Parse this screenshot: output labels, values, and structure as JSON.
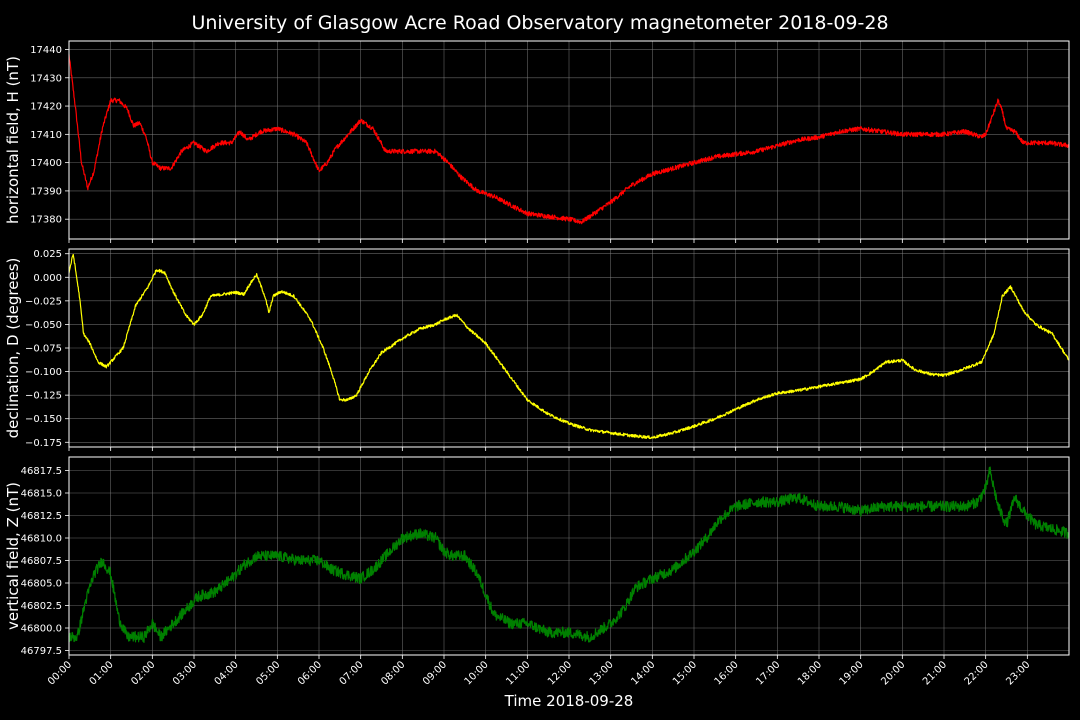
{
  "chart_data": {
    "type": "line",
    "title": "University of Glasgow Acre Road Observatory magnetometer 2018-09-28",
    "xlabel": "Time 2018-09-28",
    "x_unit": "hours",
    "xlim": [
      0,
      24
    ],
    "x_ticks": [
      "00:00",
      "01:00",
      "02:00",
      "03:00",
      "04:00",
      "05:00",
      "06:00",
      "07:00",
      "08:00",
      "09:00",
      "10:00",
      "11:00",
      "12:00",
      "13:00",
      "14:00",
      "15:00",
      "16:00",
      "17:00",
      "18:00",
      "19:00",
      "20:00",
      "21:00",
      "22:00",
      "23:00"
    ],
    "grid": true,
    "background": "#000000",
    "grid_color": "#808080",
    "panels": [
      {
        "ylabel": "horizontal field, H (nT)",
        "color": "#ff0000",
        "ylim": [
          17373,
          17443
        ],
        "y_ticks": [
          "17380",
          "17390",
          "17400",
          "17410",
          "17420",
          "17430",
          "17440"
        ],
        "noise": 0.8,
        "x": [
          0,
          0.15,
          0.3,
          0.45,
          0.6,
          0.8,
          1.0,
          1.2,
          1.4,
          1.55,
          1.7,
          1.85,
          2.0,
          2.2,
          2.45,
          2.7,
          3.0,
          3.3,
          3.6,
          3.9,
          4.1,
          4.3,
          4.6,
          5.0,
          5.4,
          5.7,
          6.0,
          6.2,
          6.4,
          6.7,
          7.0,
          7.3,
          7.6,
          8.0,
          8.4,
          8.8,
          9.1,
          9.4,
          9.8,
          10.2,
          10.6,
          11.0,
          11.5,
          12.0,
          12.3,
          12.6,
          13.0,
          13.5,
          14.0,
          14.5,
          15.0,
          15.5,
          16.0,
          16.5,
          17.0,
          17.5,
          18.0,
          18.5,
          19.0,
          19.5,
          20.0,
          20.5,
          21.0,
          21.5,
          21.9,
          22.0,
          22.2,
          22.3,
          22.4,
          22.5,
          22.7,
          22.9,
          23.1,
          23.5,
          24.0
        ],
        "values": [
          17438,
          17420,
          17400,
          17391,
          17397,
          17412,
          17422,
          17422,
          17419,
          17413,
          17414,
          17409,
          17400,
          17398,
          17398,
          17404,
          17407,
          17404,
          17407,
          17407,
          17411,
          17408,
          17411,
          17412,
          17410,
          17407,
          17397,
          17400,
          17405,
          17410,
          17415,
          17412,
          17404,
          17404,
          17404,
          17404,
          17400,
          17395,
          17390,
          17388,
          17385,
          17382,
          17381,
          17380,
          17379,
          17382,
          17386,
          17392,
          17396,
          17398,
          17400,
          17402,
          17403,
          17404,
          17406,
          17408,
          17409,
          17411,
          17412,
          17411,
          17410,
          17410,
          17410,
          17411,
          17409,
          17410,
          17418,
          17422,
          17418,
          17412,
          17411,
          17407,
          17407,
          17407,
          17406
        ]
      },
      {
        "ylabel": "declination, D (degrees)",
        "color": "#ffff00",
        "ylim": [
          -0.18,
          0.03
        ],
        "y_ticks": [
          "−0.175",
          "−0.150",
          "−0.125",
          "−0.100",
          "−0.075",
          "−0.050",
          "−0.025",
          "0.000",
          "0.025"
        ],
        "noise": 0.0015,
        "x": [
          0,
          0.1,
          0.25,
          0.35,
          0.5,
          0.7,
          0.9,
          1.0,
          1.3,
          1.6,
          1.9,
          2.1,
          2.3,
          2.5,
          2.8,
          3.0,
          3.2,
          3.4,
          3.7,
          4.0,
          4.2,
          4.3,
          4.5,
          4.7,
          4.8,
          4.9,
          5.1,
          5.4,
          5.8,
          6.1,
          6.3,
          6.5,
          6.7,
          6.9,
          7.2,
          7.5,
          8.0,
          8.4,
          8.8,
          9.0,
          9.3,
          9.6,
          10.0,
          10.5,
          11.0,
          11.5,
          12.0,
          12.5,
          13.0,
          13.5,
          14.0,
          14.5,
          15.0,
          15.5,
          16.0,
          16.5,
          17.0,
          17.5,
          18.0,
          18.5,
          19.0,
          19.3,
          19.6,
          20.0,
          20.3,
          20.7,
          21.0,
          21.3,
          21.6,
          21.9,
          22.2,
          22.4,
          22.6,
          22.9,
          23.2,
          23.6,
          24.0
        ],
        "values": [
          0.005,
          0.025,
          -0.02,
          -0.06,
          -0.07,
          -0.09,
          -0.095,
          -0.09,
          -0.075,
          -0.03,
          -0.01,
          0.008,
          0.005,
          -0.015,
          -0.04,
          -0.05,
          -0.04,
          -0.02,
          -0.018,
          -0.016,
          -0.018,
          -0.01,
          0.003,
          -0.02,
          -0.038,
          -0.02,
          -0.015,
          -0.02,
          -0.045,
          -0.075,
          -0.1,
          -0.13,
          -0.13,
          -0.125,
          -0.1,
          -0.08,
          -0.065,
          -0.055,
          -0.05,
          -0.045,
          -0.04,
          -0.055,
          -0.07,
          -0.1,
          -0.13,
          -0.145,
          -0.155,
          -0.162,
          -0.165,
          -0.168,
          -0.17,
          -0.165,
          -0.158,
          -0.15,
          -0.14,
          -0.13,
          -0.123,
          -0.12,
          -0.116,
          -0.112,
          -0.108,
          -0.1,
          -0.09,
          -0.088,
          -0.098,
          -0.103,
          -0.104,
          -0.1,
          -0.095,
          -0.09,
          -0.06,
          -0.02,
          -0.01,
          -0.035,
          -0.05,
          -0.06,
          -0.088
        ]
      },
      {
        "ylabel": "vertical field, Z (nT)",
        "color": "#008000",
        "ylim": [
          46797,
          46819
        ],
        "y_ticks": [
          "46797.5",
          "46800.0",
          "46802.5",
          "46805.0",
          "46807.5",
          "46810.0",
          "46812.5",
          "46815.0",
          "46817.5"
        ],
        "noise": 0.6,
        "x": [
          0,
          0.2,
          0.4,
          0.6,
          0.8,
          1.0,
          1.2,
          1.4,
          1.6,
          1.8,
          2.0,
          2.2,
          2.5,
          2.8,
          3.1,
          3.5,
          3.9,
          4.2,
          4.5,
          5.0,
          5.5,
          6.0,
          6.3,
          6.6,
          7.0,
          7.3,
          7.6,
          8.0,
          8.4,
          8.8,
          9.0,
          9.2,
          9.5,
          9.8,
          10.2,
          10.6,
          11.0,
          11.5,
          12.0,
          12.5,
          13.0,
          13.3,
          13.6,
          14.0,
          14.5,
          15.0,
          15.3,
          15.6,
          16.0,
          16.5,
          17.0,
          17.5,
          18.0,
          18.5,
          19.0,
          19.5,
          20.0,
          20.5,
          21.0,
          21.5,
          21.8,
          22.0,
          22.1,
          22.2,
          22.3,
          22.5,
          22.7,
          22.9,
          23.2,
          23.6,
          24.0
        ],
        "values": [
          46799,
          46799,
          46803,
          46806,
          46807.5,
          46806,
          46801,
          46799,
          46799,
          46799,
          46800.5,
          46799,
          46800.5,
          46802,
          46803.5,
          46804,
          46805.5,
          46807,
          46808,
          46808,
          46807.5,
          46807.5,
          46806.5,
          46806,
          46805.5,
          46806.5,
          46808,
          46810,
          46810.5,
          46810,
          46808.5,
          46808,
          46808,
          46806,
          46801.5,
          46800.5,
          46800.5,
          46799.5,
          46799.5,
          46799,
          46800.5,
          46802,
          46804.5,
          46805.5,
          46806.5,
          46808.5,
          46810,
          46812,
          46813.5,
          46814,
          46814,
          46814.5,
          46813.5,
          46813.5,
          46813,
          46813.5,
          46813.5,
          46813.5,
          46813.5,
          46813.5,
          46814,
          46815.5,
          46817.5,
          46815.5,
          46813.5,
          46811.5,
          46814.5,
          46813,
          46811.5,
          46811,
          46810.5
        ]
      }
    ]
  }
}
